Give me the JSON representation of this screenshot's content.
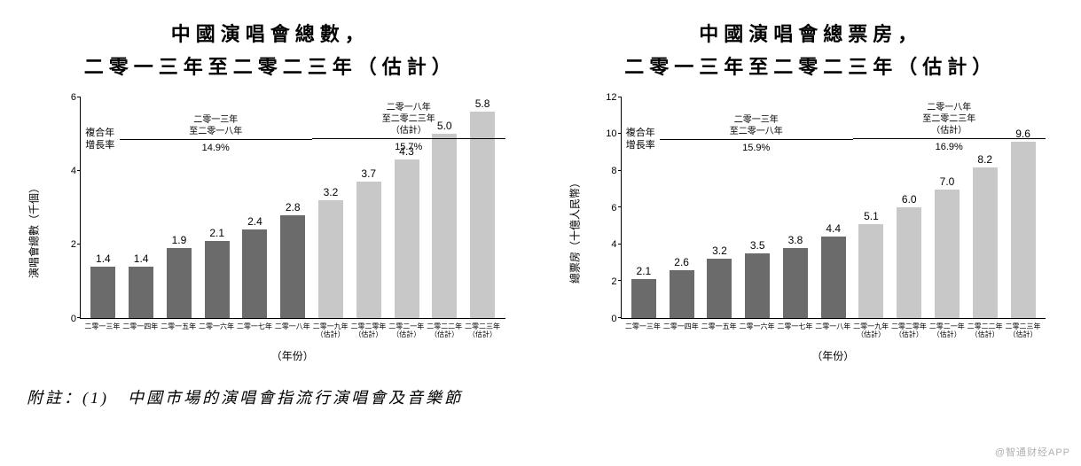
{
  "chart_left": {
    "title_line1": "中國演唱會總數，",
    "title_line2": "二零一三年至二零二三年（估計）",
    "ylabel": "演唱會總數（千個）",
    "xlabel": "（年份）",
    "ymax": 6,
    "ytick_step": 2,
    "cagr_label": "複合年\n增長率",
    "cagr_seg1_header": "二零一三年\n至二零一八年",
    "cagr_seg1_value": "14.9%",
    "cagr_seg2_header": "二零一八年\n至二零二三年\n（估計）",
    "cagr_seg2_value": "15.7%",
    "dark_color": "#6b6b6b",
    "light_color": "#c8c8c8",
    "categories": [
      {
        "label": "二零一三年",
        "sub": "",
        "value": 1.4,
        "dark": true
      },
      {
        "label": "二零一四年",
        "sub": "",
        "value": 1.4,
        "dark": true
      },
      {
        "label": "二零一五年",
        "sub": "",
        "value": 1.9,
        "dark": true
      },
      {
        "label": "二零一六年",
        "sub": "",
        "value": 2.1,
        "dark": true
      },
      {
        "label": "二零一七年",
        "sub": "",
        "value": 2.4,
        "dark": true
      },
      {
        "label": "二零一八年",
        "sub": "",
        "value": 2.8,
        "dark": true
      },
      {
        "label": "二零一九年",
        "sub": "（估計）",
        "value": 3.2,
        "dark": false
      },
      {
        "label": "二零二零年",
        "sub": "（估計）",
        "value": 3.7,
        "dark": false
      },
      {
        "label": "二零二一年",
        "sub": "（估計）",
        "value": 4.3,
        "dark": false
      },
      {
        "label": "二零二二年",
        "sub": "（估計）",
        "value": 5.0,
        "dark": false
      },
      {
        "label": "二零二三年",
        "sub": "（估計）",
        "value": 5.8,
        "dark": false
      }
    ]
  },
  "chart_right": {
    "title_line1": "中國演唱會總票房，",
    "title_line2": "二零一三年至二零二三年（估計）",
    "ylabel": "總票房（十億人民幣）",
    "xlabel": "（年份）",
    "ymax": 12,
    "ytick_step": 2,
    "cagr_label": "複合年\n增長率",
    "cagr_seg1_header": "二零一三年\n至二零一八年",
    "cagr_seg1_value": "15.9%",
    "cagr_seg2_header": "二零一八年\n至二零二三年\n（估計）",
    "cagr_seg2_value": "16.9%",
    "dark_color": "#6b6b6b",
    "light_color": "#c8c8c8",
    "categories": [
      {
        "label": "二零一三年",
        "sub": "",
        "value": 2.1,
        "dark": true
      },
      {
        "label": "二零一四年",
        "sub": "",
        "value": 2.6,
        "dark": true
      },
      {
        "label": "二零一五年",
        "sub": "",
        "value": 3.2,
        "dark": true
      },
      {
        "label": "二零一六年",
        "sub": "",
        "value": 3.5,
        "dark": true
      },
      {
        "label": "二零一七年",
        "sub": "",
        "value": 3.8,
        "dark": true
      },
      {
        "label": "二零一八年",
        "sub": "",
        "value": 4.4,
        "dark": true
      },
      {
        "label": "二零一九年",
        "sub": "（估計）",
        "value": 5.1,
        "dark": false
      },
      {
        "label": "二零二零年",
        "sub": "（估計）",
        "value": 6.0,
        "dark": false
      },
      {
        "label": "二零二一年",
        "sub": "（估計）",
        "value": 7.0,
        "dark": false
      },
      {
        "label": "二零二二年",
        "sub": "（估計）",
        "value": 8.2,
        "dark": false
      },
      {
        "label": "二零二三年",
        "sub": "（估計）",
        "value": 9.6,
        "dark": false
      }
    ]
  },
  "footnote": "附註：(1)　中國市場的演唱會指流行演唱會及音樂節",
  "watermark": "@智通财经APP"
}
